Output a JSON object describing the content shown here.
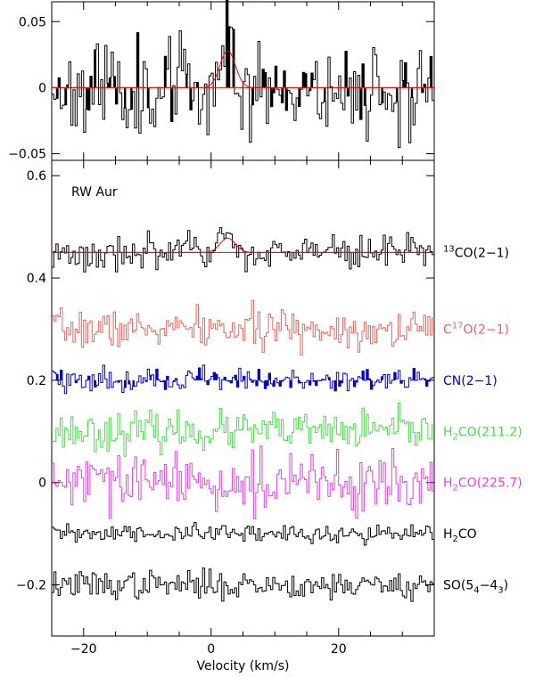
{
  "chart_data": [
    {
      "type": "line",
      "panel": "zoom",
      "xlim": [
        -25,
        35
      ],
      "ylim": [
        -0.055,
        0.065
      ],
      "yticks": [
        -0.05,
        0,
        0.05
      ],
      "ytick_labels": [
        "−0.05",
        "0",
        "0.05"
      ],
      "xticks": [
        -20,
        0,
        20
      ],
      "series": [
        {
          "style": "steps",
          "color": "#000000",
          "rms": 0.02,
          "seed": 11
        },
        {
          "style": "gaussian-fit",
          "color": "#ff0000",
          "baseline": 0,
          "amplitude": 0.028,
          "center": 2.6,
          "sigma": 1.2
        }
      ],
      "reference_line": {
        "y": 0,
        "color": "#ff0000"
      }
    },
    {
      "type": "line",
      "panel": "main",
      "annotation": "RW Aur",
      "xlabel": "Velocity (km/s)",
      "xlim": [
        -25,
        35
      ],
      "ylim": [
        -0.3,
        0.63
      ],
      "xticks": [
        -20,
        0,
        20
      ],
      "xtick_labels": [
        "−20",
        "0",
        "20"
      ],
      "yticks": [
        -0.2,
        0,
        0.2,
        0.4,
        0.6
      ],
      "ytick_labels": [
        "−0.2",
        "0",
        "0.2",
        "0.4",
        "0.6"
      ],
      "series": [
        {
          "label_main": "",
          "label_super": "13",
          "label_tail": "CO(2−1)",
          "label_sub": "",
          "label_after": "",
          "label_sub2": "",
          "color": "#000000",
          "offset": 0.45,
          "rms": 0.02,
          "seed": 3,
          "fit": {
            "amplitude": 0.028,
            "center": 2.6,
            "sigma": 1.2,
            "color": "#ff0000"
          }
        },
        {
          "label_main": "C",
          "label_super": "17",
          "label_tail": "O(2−1)",
          "label_sub": "",
          "label_after": "",
          "label_sub2": "",
          "color": "#e8645a",
          "offset": 0.3,
          "rms": 0.02,
          "seed": 7
        },
        {
          "label_main": "CN(2−1)",
          "label_super": "",
          "label_tail": "",
          "label_sub": "",
          "label_after": "",
          "label_sub2": "",
          "color": "#0000d0",
          "offset": 0.2,
          "rms": 0.012,
          "seed": 19,
          "shaded": true
        },
        {
          "label_main": "H",
          "label_super": "",
          "label_tail": "",
          "label_sub": "2",
          "label_after": "CO(211.2)",
          "label_sub2": "",
          "color": "#44dd44",
          "offset": 0.1,
          "rms": 0.02,
          "seed": 23
        },
        {
          "label_main": "H",
          "label_super": "",
          "label_tail": "",
          "label_sub": "2",
          "label_after": "CO(225.7)",
          "label_sub2": "",
          "color": "#e040e0",
          "offset": 0.0,
          "rms": 0.03,
          "seed": 29
        },
        {
          "label_main": "H",
          "label_super": "",
          "label_tail": "",
          "label_sub": "2",
          "label_after": "CO",
          "label_sub2": "",
          "color": "#000000",
          "offset": -0.1,
          "rms": 0.01,
          "seed": 31
        },
        {
          "label_main": "SO(5",
          "label_super": "",
          "label_tail": "",
          "label_sub": "4",
          "label_after": "−4",
          "label_sub2": "3",
          "label_close": ")",
          "color": "#000000",
          "offset": -0.2,
          "rms": 0.015,
          "seed": 37
        }
      ]
    }
  ]
}
